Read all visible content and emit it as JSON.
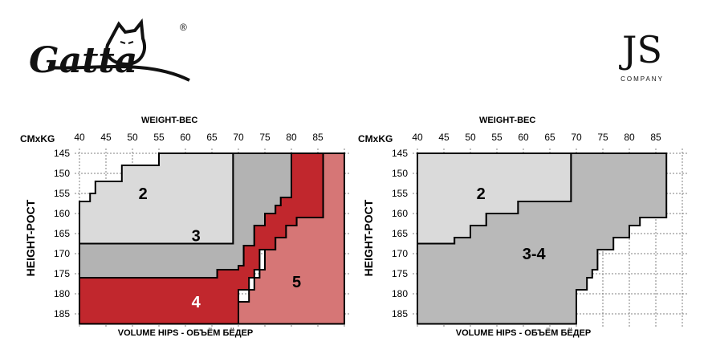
{
  "brands": {
    "left_logo": "Gatta",
    "registered_mark": "®",
    "right_logo": "JS",
    "right_logo_sub": "COMPANY"
  },
  "colors": {
    "size2": "#dadada",
    "size3": "#b3b3b3",
    "size34": "#b9b9b9",
    "size4": "#c1272d",
    "size5": "#d67676",
    "grid": "#808080",
    "text": "#000000"
  },
  "chart_data": [
    {
      "type": "heatmap",
      "title": "WEIGHT-ВЕС",
      "corner_label": "CMxKG",
      "xlabel": "VOLUME HIPS - ОБЪЁМ БЁДЕР",
      "ylabel": "HEIGHT-POCT",
      "x_ticks": [
        40,
        45,
        50,
        55,
        60,
        65,
        70,
        75,
        80,
        85
      ],
      "y_ticks": [
        145,
        150,
        155,
        160,
        165,
        170,
        175,
        180,
        185
      ],
      "x_range": [
        40,
        90
      ],
      "y_range": [
        145,
        187.5
      ],
      "regions": [
        {
          "label": "2",
          "color_key": "size2",
          "label_at": [
            52,
            155
          ],
          "poly": [
            [
              40,
              157
            ],
            [
              40,
              167.5
            ],
            [
              69,
              167.5
            ],
            [
              69,
              145
            ],
            [
              55,
              145
            ],
            [
              55,
              148
            ],
            [
              48,
              148
            ],
            [
              48,
              152
            ],
            [
              43,
              152
            ],
            [
              43,
              155
            ],
            [
              42,
              155
            ],
            [
              42,
              157
            ]
          ]
        },
        {
          "label": "3",
          "color_key": "size3",
          "label_at": [
            62,
            165.5
          ],
          "poly": [
            [
              69,
              145
            ],
            [
              80,
              145
            ],
            [
              80,
              156
            ],
            [
              78,
              156
            ],
            [
              78,
              158
            ],
            [
              77,
              158
            ],
            [
              77,
              160
            ],
            [
              75,
              160
            ],
            [
              75,
              163
            ],
            [
              73,
              163
            ],
            [
              73,
              168
            ],
            [
              71,
              168
            ],
            [
              71,
              173
            ],
            [
              70,
              173
            ],
            [
              70,
              174
            ],
            [
              66,
              174
            ],
            [
              66,
              176
            ],
            [
              40,
              176
            ],
            [
              40,
              167.5
            ],
            [
              69,
              167.5
            ]
          ]
        },
        {
          "label": "4",
          "color_key": "size4",
          "label_at": [
            62,
            182
          ],
          "poly": [
            [
              40,
              176
            ],
            [
              66,
              176
            ],
            [
              66,
              174
            ],
            [
              70,
              174
            ],
            [
              70,
              173
            ],
            [
              71,
              173
            ],
            [
              71,
              168
            ],
            [
              73,
              168
            ],
            [
              73,
              163
            ],
            [
              75,
              163
            ],
            [
              75,
              160
            ],
            [
              77,
              160
            ],
            [
              77,
              158
            ],
            [
              78,
              158
            ],
            [
              78,
              156
            ],
            [
              80,
              156
            ],
            [
              80,
              145
            ],
            [
              86,
              145
            ],
            [
              86,
              161
            ],
            [
              81,
              161
            ],
            [
              81,
              163
            ],
            [
              79,
              163
            ],
            [
              79,
              166
            ],
            [
              77,
              166
            ],
            [
              77,
              169
            ],
            [
              74,
              169
            ],
            [
              74,
              174
            ],
            [
              73,
              174
            ],
            [
              73,
              176
            ],
            [
              72,
              176
            ],
            [
              72,
              179
            ],
            [
              70,
              179
            ],
            [
              70,
              182
            ],
            [
              70,
              187.5
            ],
            [
              40,
              187.5
            ]
          ]
        },
        {
          "label": "5",
          "color_key": "size5",
          "label_at": [
            81,
            177
          ],
          "poly": [
            [
              86,
              145
            ],
            [
              90,
              145
            ],
            [
              90,
              187.5
            ],
            [
              70,
              187.5
            ],
            [
              70,
              182
            ],
            [
              72,
              182
            ],
            [
              72,
              179
            ],
            [
              73,
              179
            ],
            [
              73,
              176
            ],
            [
              74,
              176
            ],
            [
              74,
              174
            ],
            [
              75,
              174
            ],
            [
              75,
              169
            ],
            [
              77,
              169
            ],
            [
              77,
              166
            ],
            [
              79,
              166
            ],
            [
              79,
              163
            ],
            [
              81,
              163
            ],
            [
              81,
              161
            ],
            [
              86,
              161
            ]
          ]
        }
      ]
    },
    {
      "type": "heatmap",
      "title": "WEIGHT-ВЕС",
      "corner_label": "CMxKG",
      "xlabel": "VOLUME HIPS - ОБЪЁМ БЁДЕР",
      "ylabel": "HEIGHT-POCT",
      "x_ticks": [
        40,
        45,
        50,
        55,
        60,
        65,
        70,
        75,
        80,
        85
      ],
      "y_ticks": [
        145,
        150,
        155,
        160,
        165,
        170,
        175,
        180,
        185
      ],
      "x_range": [
        40,
        90
      ],
      "y_range": [
        145,
        187.5
      ],
      "regions": [
        {
          "label": "2",
          "color_key": "size2",
          "label_at": [
            52,
            155
          ],
          "poly": [
            [
              40,
              145
            ],
            [
              69,
              145
            ],
            [
              69,
              157
            ],
            [
              59,
              157
            ],
            [
              59,
              160
            ],
            [
              53,
              160
            ],
            [
              53,
              163
            ],
            [
              50,
              163
            ],
            [
              50,
              166
            ],
            [
              47,
              166
            ],
            [
              47,
              167.5
            ],
            [
              40,
              167.5
            ]
          ]
        },
        {
          "label": "3-4",
          "color_key": "size34",
          "label_at": [
            62,
            170
          ],
          "poly": [
            [
              69,
              145
            ],
            [
              87,
              145
            ],
            [
              87,
              161
            ],
            [
              82,
              161
            ],
            [
              82,
              163
            ],
            [
              80,
              163
            ],
            [
              80,
              166
            ],
            [
              77,
              166
            ],
            [
              77,
              169
            ],
            [
              74,
              169
            ],
            [
              74,
              174
            ],
            [
              73,
              174
            ],
            [
              73,
              176
            ],
            [
              72,
              176
            ],
            [
              72,
              179
            ],
            [
              70,
              179
            ],
            [
              70,
              182
            ],
            [
              70,
              187.5
            ],
            [
              40,
              187.5
            ],
            [
              40,
              167.5
            ],
            [
              47,
              167.5
            ],
            [
              47,
              166
            ],
            [
              50,
              166
            ],
            [
              50,
              163
            ],
            [
              53,
              163
            ],
            [
              53,
              160
            ],
            [
              59,
              160
            ],
            [
              59,
              157
            ],
            [
              69,
              157
            ]
          ]
        }
      ]
    }
  ]
}
